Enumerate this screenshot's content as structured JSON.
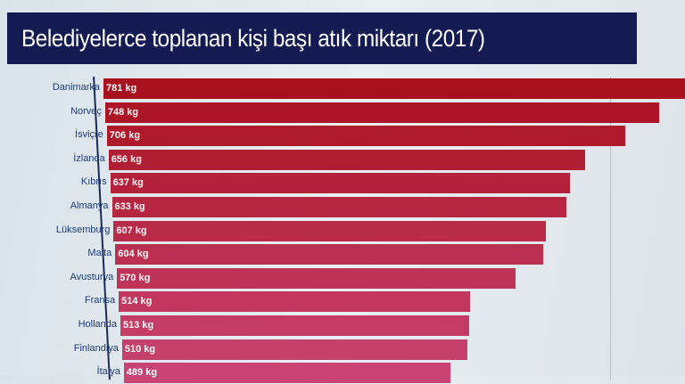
{
  "chart_data": {
    "type": "bar",
    "orientation": "horizontal",
    "title": "Belediyelerce toplanan kişi başı atık miktarı (2017)",
    "categories": [
      "Danimarka",
      "Norveç",
      "İsviçre",
      "İzlanda",
      "Kıbrıs",
      "Almanya",
      "Lüksemburg",
      "Malta",
      "Avusturya",
      "Fransa",
      "Hollanda",
      "Finlandiya",
      "İtalya"
    ],
    "values": [
      781,
      748,
      706,
      656,
      637,
      633,
      607,
      604,
      570,
      514,
      513,
      510,
      489
    ],
    "value_labels": [
      "781 kg",
      "748 kg",
      "706 kg",
      "656 kg",
      "637 kg",
      "633 kg",
      "607 kg",
      "604 kg",
      "570 kg",
      "514 kg",
      "513 kg",
      "510 kg",
      "489 kg"
    ],
    "unit": "kg",
    "colors": {
      "top": "#a8111e",
      "bottom": "#c94473",
      "title_bg": "#141a52"
    }
  }
}
